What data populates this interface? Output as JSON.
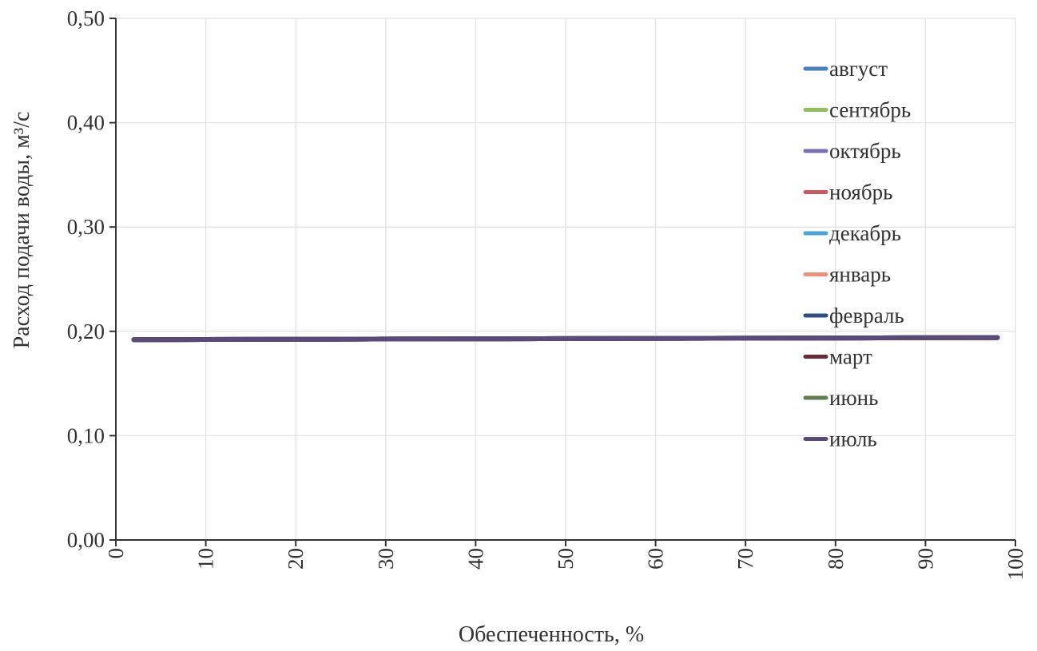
{
  "chart_data": {
    "type": "line",
    "title": "",
    "xlabel": "Обеспеченность, %",
    "ylabel": "Расход подачи воды, м³/с",
    "xlim": [
      0,
      100
    ],
    "ylim": [
      0,
      0.5
    ],
    "x_ticks": [
      0,
      10,
      20,
      30,
      40,
      50,
      60,
      70,
      80,
      90,
      100
    ],
    "x_tick_labels": [
      "0",
      "10",
      "20",
      "30",
      "40",
      "50",
      "60",
      "70",
      "80",
      "90",
      "100"
    ],
    "y_ticks": [
      0,
      0.1,
      0.2,
      0.3,
      0.4,
      0.5
    ],
    "y_tick_labels": [
      "0,00",
      "0,10",
      "0,20",
      "0,30",
      "0,40",
      "0,50"
    ],
    "grid": true,
    "legend_position": "top-right",
    "series": [
      {
        "name": "август",
        "color": "#4a7fc1",
        "x": [
          2,
          98
        ],
        "y": [
          0.192,
          0.194
        ]
      },
      {
        "name": "сентябрь",
        "color": "#8fbf5a",
        "x": [
          2,
          98
        ],
        "y": [
          0.192,
          0.194
        ]
      },
      {
        "name": "октябрь",
        "color": "#7d6fb5",
        "x": [
          2,
          98
        ],
        "y": [
          0.192,
          0.194
        ]
      },
      {
        "name": "ноябрь",
        "color": "#c95a62",
        "x": [
          2,
          98
        ],
        "y": [
          0.192,
          0.194
        ]
      },
      {
        "name": "декабрь",
        "color": "#4aa3d8",
        "x": [
          2,
          98
        ],
        "y": [
          0.192,
          0.194
        ]
      },
      {
        "name": "январь",
        "color": "#f0907a",
        "x": [
          2,
          98
        ],
        "y": [
          0.192,
          0.194
        ]
      },
      {
        "name": "февраль",
        "color": "#2f4f80",
        "x": [
          2,
          98
        ],
        "y": [
          0.192,
          0.194
        ]
      },
      {
        "name": "март",
        "color": "#6b2a3a",
        "x": [
          2,
          98
        ],
        "y": [
          0.192,
          0.194
        ]
      },
      {
        "name": "июнь",
        "color": "#5f7f4f",
        "x": [
          2,
          98
        ],
        "y": [
          0.192,
          0.194
        ]
      },
      {
        "name": "июль",
        "color": "#5a4a7a",
        "x": [
          2,
          98
        ],
        "y": [
          0.192,
          0.194
        ]
      }
    ]
  }
}
